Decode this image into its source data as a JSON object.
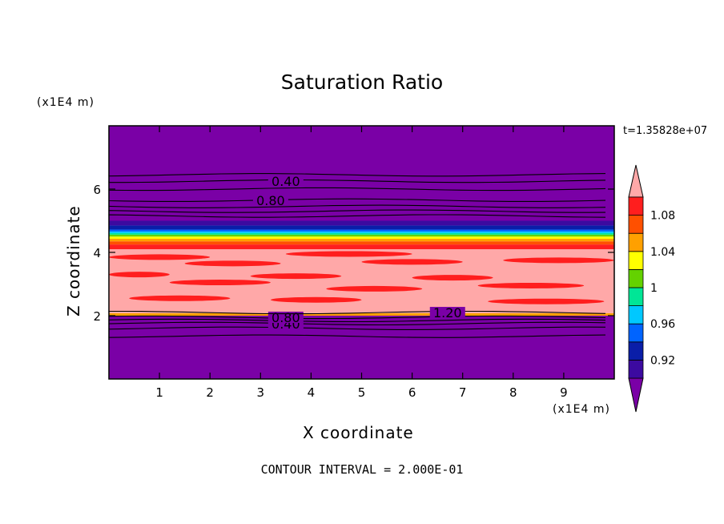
{
  "chart_data": {
    "type": "heatmap",
    "subtype": "filled-contour",
    "title": "Saturation Ratio",
    "xlabel": "X coordinate",
    "ylabel": "Z coordinate",
    "x_unit": "(x1E4 m)",
    "z_unit": "(x1E4 m)",
    "time_label": "t=1.35828e+07",
    "footer": "CONTOUR INTERVAL = 2.000E-01",
    "xlim": [
      0,
      10
    ],
    "ylim": [
      0,
      8
    ],
    "x_ticks": [
      1,
      2,
      3,
      4,
      5,
      6,
      7,
      8,
      9
    ],
    "y_ticks": [
      2,
      4,
      6
    ],
    "colorbar": {
      "levels": [
        0.92,
        0.94,
        0.96,
        0.98,
        1,
        1.02,
        1.04,
        1.06,
        1.08,
        1.1
      ],
      "tick_labels": [
        "0.92",
        "0.96",
        "1",
        "1.04",
        "1.08"
      ],
      "colors": [
        "#7a00a6",
        "#3c0aa0",
        "#0a1ea8",
        "#0064ff",
        "#00c8ff",
        "#00e696",
        "#64d200",
        "#ffff00",
        "#ffa000",
        "#ff5000",
        "#ff1e1e",
        "#ffa8a8"
      ],
      "extend": "both"
    },
    "bands": [
      {
        "z0": 0.0,
        "z1": 2.0,
        "color_index": 0
      },
      {
        "z0": 2.0,
        "z1": 2.08,
        "color_index": 8
      },
      {
        "z0": 2.08,
        "z1": 4.1,
        "color_index": 11
      },
      {
        "z0": 4.1,
        "z1": 4.25,
        "color_index": 10
      },
      {
        "z0": 4.25,
        "z1": 4.35,
        "color_index": 9
      },
      {
        "z0": 4.35,
        "z1": 4.43,
        "color_index": 8
      },
      {
        "z0": 4.43,
        "z1": 4.5,
        "color_index": 7
      },
      {
        "z0": 4.5,
        "z1": 4.56,
        "color_index": 6
      },
      {
        "z0": 4.56,
        "z1": 4.61,
        "color_index": 5
      },
      {
        "z0": 4.61,
        "z1": 4.66,
        "color_index": 4
      },
      {
        "z0": 4.66,
        "z1": 4.72,
        "color_index": 3
      },
      {
        "z0": 4.72,
        "z1": 4.85,
        "color_index": 2
      },
      {
        "z0": 4.85,
        "z1": 5.0,
        "color_index": 1
      },
      {
        "z0": 5.0,
        "z1": 8.0,
        "color_index": 0
      }
    ],
    "red_streaks": [
      {
        "x0": 0.0,
        "x1": 1.2,
        "z": 3.3
      },
      {
        "x0": 1.2,
        "x1": 3.2,
        "z": 3.05
      },
      {
        "x0": 2.8,
        "x1": 4.6,
        "z": 3.25
      },
      {
        "x0": 4.3,
        "x1": 6.2,
        "z": 2.85
      },
      {
        "x0": 6.0,
        "x1": 7.6,
        "z": 3.2
      },
      {
        "x0": 7.3,
        "x1": 9.4,
        "z": 2.95
      },
      {
        "x0": 0.4,
        "x1": 2.4,
        "z": 2.55
      },
      {
        "x0": 3.2,
        "x1": 5.0,
        "z": 2.5
      },
      {
        "x0": 7.5,
        "x1": 9.8,
        "z": 2.45
      },
      {
        "x0": 1.5,
        "x1": 3.4,
        "z": 3.65
      },
      {
        "x0": 5.0,
        "x1": 7.0,
        "z": 3.7
      },
      {
        "x0": 7.8,
        "x1": 10.0,
        "z": 3.75
      },
      {
        "x0": 0.0,
        "x1": 2.0,
        "z": 3.85
      },
      {
        "x0": 3.5,
        "x1": 6.0,
        "z": 3.95
      }
    ],
    "contours": [
      {
        "z": 1.35
      },
      {
        "z": 1.6
      },
      {
        "z": 1.75,
        "label": "0.40",
        "label_x": 3.5
      },
      {
        "z": 1.85
      },
      {
        "z": 1.95,
        "label": "0.80",
        "label_x": 3.5
      },
      {
        "z": 2.1,
        "label": "1.20",
        "label_x": 6.7
      },
      {
        "z": 5.15
      },
      {
        "z": 5.3
      },
      {
        "z": 5.45
      },
      {
        "z": 5.65,
        "label": "0.80",
        "label_x": 3.2
      },
      {
        "z": 6.0
      },
      {
        "z": 6.25,
        "label": "0.40",
        "label_x": 3.5
      },
      {
        "z": 6.45
      }
    ]
  }
}
